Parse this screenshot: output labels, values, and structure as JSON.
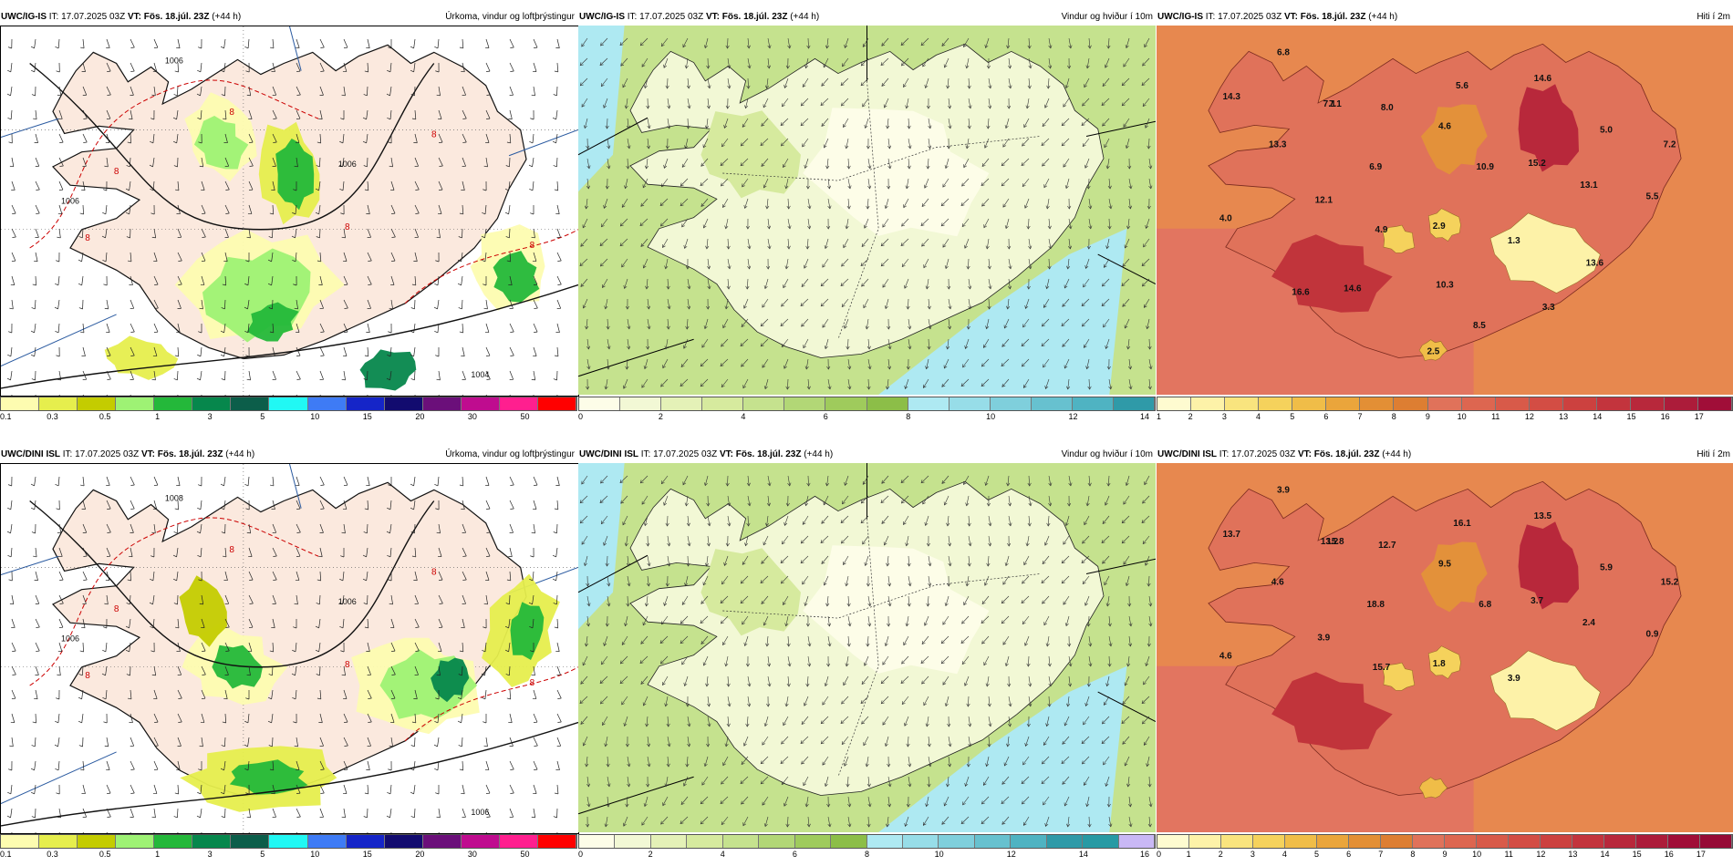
{
  "colors": {
    "land": "#fbe9de",
    "sea_white": "#ffffff",
    "temp_base": "#e0725a",
    "wind_base": "#c5e28e",
    "wind_light": "#f2f8d5",
    "wind_cyan": "#aee9f2",
    "frame": "#000000"
  },
  "rows": [
    {
      "id": "igis",
      "panels": [
        {
          "kind": "precip",
          "model": "UWC/IG-IS",
          "it": "IT: 17.07.2025 03Z",
          "vt": "VT: Fös. 18.júl. 23Z",
          "lead": "(+44 h)",
          "title": "Úrkoma, vindur og loftþrýstingur",
          "colorbar": [
            "#fdfcb0",
            "#e6ee4d",
            "#c4cc00",
            "#9ef274",
            "#24b83a",
            "#06874c",
            "#0c5e4a",
            "#21f8f4",
            "#3e7bf5",
            "#1525c8",
            "#120b6f",
            "#6b0f7a",
            "#bf0c8f",
            "#ff1f8f",
            "#ff0000"
          ],
          "ticks": [
            "0.1",
            "0.3",
            "0.5",
            "1",
            "3",
            "5",
            "10",
            "15",
            "20",
            "30",
            "50"
          ],
          "labels": [
            "1006",
            "1006",
            "1006",
            "1004",
            "8",
            "8",
            "8",
            "8",
            "8",
            "8"
          ]
        },
        {
          "kind": "wind",
          "model": "UWC/IG-IS",
          "it": "IT: 17.07.2025 03Z",
          "vt": "VT: Fös. 18.júl. 23Z",
          "lead": "(+44 h)",
          "title": "Vindur og hviður í 10m",
          "colorbar": [
            "#fdfde8",
            "#f2f8d5",
            "#e4f1b7",
            "#d6ea9e",
            "#c5e28e",
            "#b2d776",
            "#9fcb5c",
            "#8cbe48",
            "#aee9f2",
            "#97dde8",
            "#7fcfdc",
            "#67c1cf",
            "#4fb3c2",
            "#2f9aa8"
          ],
          "ticks": [
            "0",
            "2",
            "4",
            "6",
            "8",
            "10",
            "12",
            "14"
          ]
        },
        {
          "kind": "temp",
          "model": "UWC/IG-IS",
          "it": "IT: 17.07.2025 03Z",
          "vt": "VT: Fös. 18.júl. 23Z",
          "lead": "(+44 h)",
          "title": "Hiti í 2m",
          "colorbar": [
            "#fefbd0",
            "#fdf2a8",
            "#f9e47e",
            "#f5d25c",
            "#f0bd48",
            "#eaa53b",
            "#e38f35",
            "#dd7e32",
            "#e0725a",
            "#dd6650",
            "#d85a49",
            "#d34d44",
            "#cc413f",
            "#c3343d",
            "#b8283b",
            "#ac1c3a",
            "#a00e38"
          ],
          "ticks": [
            "1",
            "2",
            "3",
            "4",
            "5",
            "6",
            "7",
            "8",
            "9",
            "10",
            "11",
            "12",
            "13",
            "14",
            "15",
            "16",
            "17"
          ],
          "values": [
            "6.8",
            "7.1",
            "14.3",
            "7.1",
            "8.0",
            "5.6",
            "14.6",
            "13.3",
            "4.6",
            "6.9",
            "10.9",
            "15.2",
            "5.0",
            "7.2",
            "12.1",
            "13.1",
            "5.5",
            "4.0",
            "4.9",
            "2.9",
            "1.3",
            "13.6",
            "16.6",
            "14.6",
            "10.3",
            "3.3",
            "8.5",
            "2.5"
          ]
        }
      ]
    },
    {
      "id": "dini",
      "panels": [
        {
          "kind": "precip",
          "model": "UWC/DINI ISL",
          "it": "IT: 17.07.2025 03Z",
          "vt": "VT: Fös. 18.júl. 23Z",
          "lead": "(+44 h)",
          "title": "Úrkoma, vindur og loftþrýstingur",
          "colorbar": [
            "#fdfcb0",
            "#e6ee4d",
            "#c4cc00",
            "#9ef274",
            "#24b83a",
            "#06874c",
            "#0c5e4a",
            "#21f8f4",
            "#3e7bf5",
            "#1525c8",
            "#120b6f",
            "#6b0f7a",
            "#bf0c8f",
            "#ff1f8f",
            "#ff0000"
          ],
          "ticks": [
            "0.1",
            "0.3",
            "0.5",
            "1",
            "3",
            "5",
            "10",
            "15",
            "20",
            "30",
            "50"
          ],
          "labels": [
            "1008",
            "1006",
            "1006",
            "1006",
            "8",
            "8",
            "8",
            "8",
            "8",
            "8"
          ]
        },
        {
          "kind": "wind",
          "model": "UWC/DINI ISL",
          "it": "IT: 17.07.2025 03Z",
          "vt": "VT: Fös. 18.júl. 23Z",
          "lead": "(+44 h)",
          "title": "Vindur og hviður í 10m",
          "colorbar": [
            "#fdfde8",
            "#f2f8d5",
            "#e4f1b7",
            "#d6ea9e",
            "#c5e28e",
            "#b2d776",
            "#9fcb5c",
            "#8cbe48",
            "#aee9f2",
            "#97dde8",
            "#7fcfdc",
            "#67c1cf",
            "#4fb3c2",
            "#2f9aa8",
            "#279aa4",
            "#c9b8f5"
          ],
          "ticks": [
            "0",
            "2",
            "4",
            "6",
            "8",
            "10",
            "12",
            "14",
            "16"
          ]
        },
        {
          "kind": "temp",
          "model": "UWC/DINI ISL",
          "it": "IT: 17.07.2025 03Z",
          "vt": "VT: Fös. 18.júl. 23Z",
          "lead": "(+44 h)",
          "title": "Hiti í 2m",
          "colorbar": [
            "#fefbd0",
            "#fdf2a8",
            "#f9e47e",
            "#f5d25c",
            "#f0bd48",
            "#eaa53b",
            "#e38f35",
            "#dd7e32",
            "#e0725a",
            "#dd6650",
            "#d85a49",
            "#d34d44",
            "#cc413f",
            "#c3343d",
            "#b8283b",
            "#ac1c3a",
            "#a00e38",
            "#960a36"
          ],
          "ticks": [
            "0",
            "1",
            "2",
            "3",
            "4",
            "5",
            "6",
            "7",
            "8",
            "9",
            "10",
            "11",
            "12",
            "13",
            "14",
            "15",
            "16",
            "17"
          ],
          "values": [
            "3.9",
            "13.2",
            "13.7",
            "15.8",
            "12.7",
            "16.1",
            "13.5",
            "4.6",
            "9.5",
            "18.8",
            "6.8",
            "3.7",
            "5.9",
            "15.2",
            "3.9",
            "2.4",
            "0.9",
            "4.6",
            "15.7",
            "1.8",
            "3.9"
          ]
        }
      ]
    }
  ]
}
